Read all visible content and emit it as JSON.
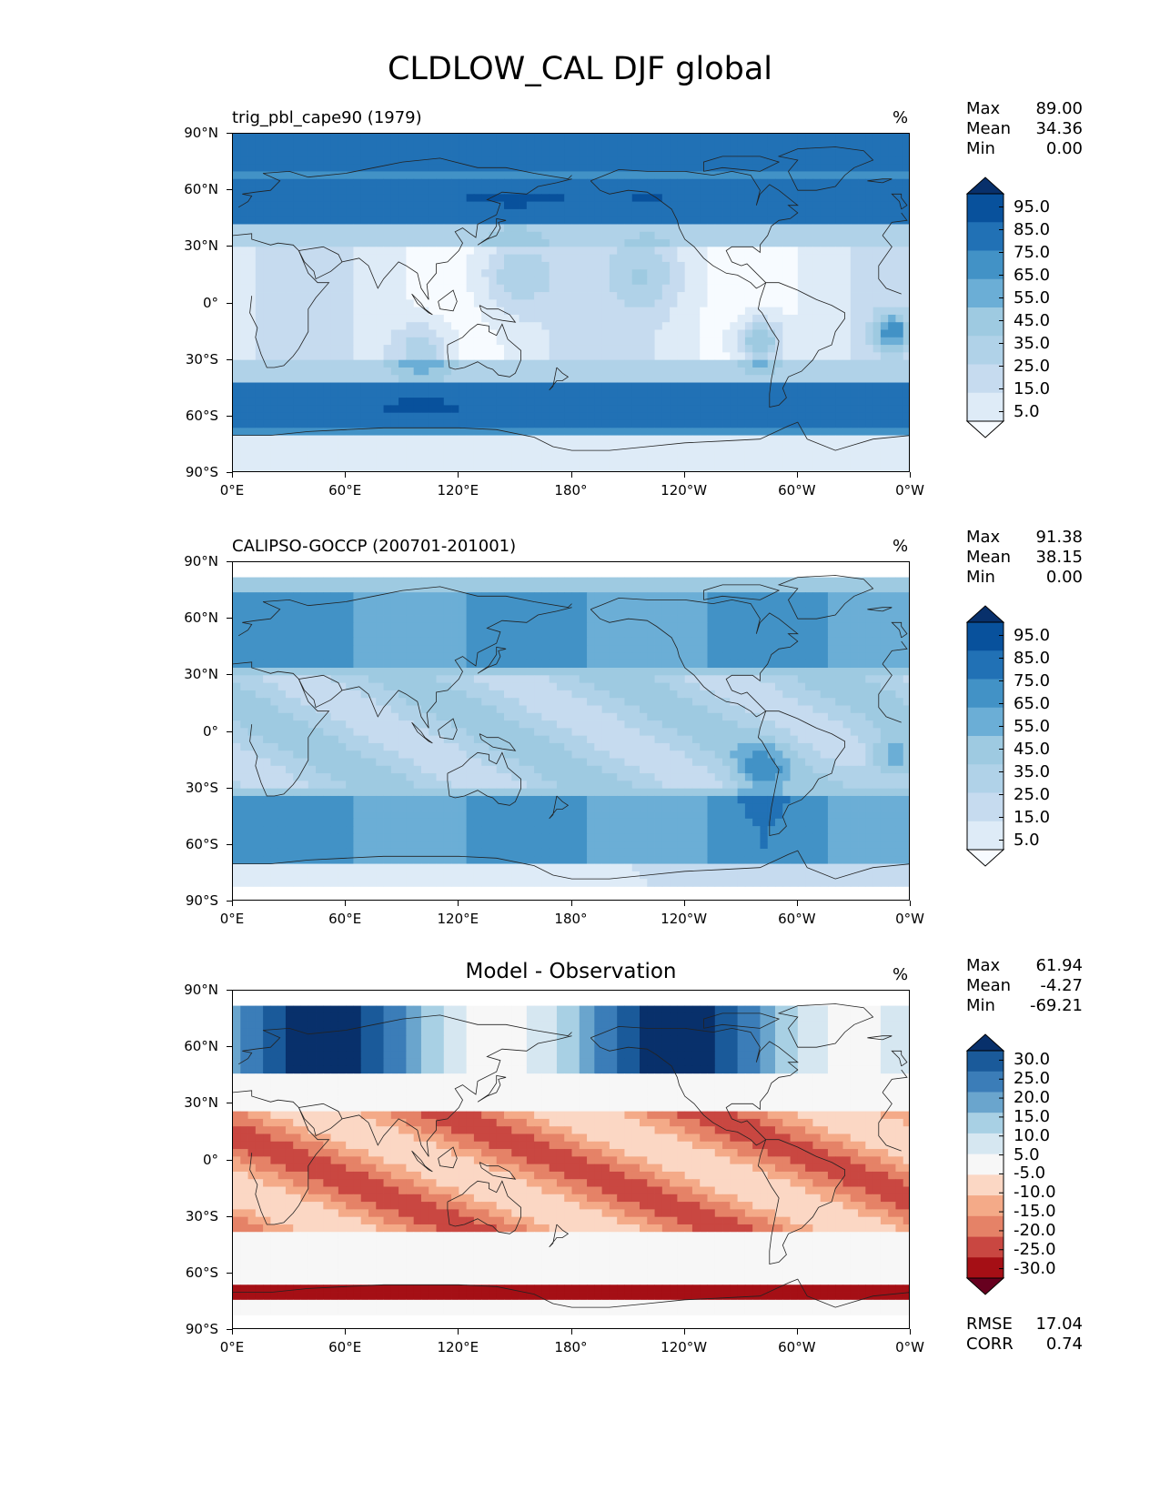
{
  "figure_title": "CLDLOW_CAL DJF global",
  "colors": {
    "blues": [
      "#f7fbff",
      "#deebf7",
      "#c6dbef",
      "#b0d2e8",
      "#9ecae1",
      "#6baed6",
      "#4292c6",
      "#2171b5",
      "#08519c",
      "#08306b"
    ],
    "diverging": [
      "#67001f",
      "#a50f15",
      "#c94741",
      "#e58267",
      "#f4aa88",
      "#fbd7c4",
      "#f7f7f7",
      "#d6e7f1",
      "#a8d0e4",
      "#6aa5cd",
      "#3b7db8",
      "#1a5a9a",
      "#08306b"
    ]
  },
  "chart_data": [
    {
      "type": "heatmap",
      "id": "model",
      "title": "trig_pbl_cape90 (1979)",
      "units": "%",
      "xlabel": "",
      "ylabel": "",
      "xlim": [
        0,
        360
      ],
      "ylim": [
        -90,
        90
      ],
      "x_ticks": [
        "0°E",
        "60°E",
        "120°E",
        "180°",
        "120°W",
        "60°W",
        "0°W"
      ],
      "y_ticks": [
        "90°N",
        "60°N",
        "30°N",
        "0°",
        "30°S",
        "60°S",
        "90°S"
      ],
      "stats": [
        [
          "Max",
          "89.00"
        ],
        [
          "Mean",
          "34.36"
        ],
        [
          "Min",
          "0.00"
        ]
      ],
      "colorbar_ticks": [
        "95.0",
        "85.0",
        "75.0",
        "65.0",
        "55.0",
        "45.0",
        "35.0",
        "25.0",
        "15.0",
        "5.0"
      ],
      "colormap": "blues"
    },
    {
      "type": "heatmap",
      "id": "obs",
      "title": "CALIPSO-GOCCP (200701-201001)",
      "units": "%",
      "xlabel": "",
      "ylabel": "",
      "xlim": [
        0,
        360
      ],
      "ylim": [
        -90,
        90
      ],
      "x_ticks": [
        "0°E",
        "60°E",
        "120°E",
        "180°",
        "120°W",
        "60°W",
        "0°W"
      ],
      "y_ticks": [
        "90°N",
        "60°N",
        "30°N",
        "0°",
        "30°S",
        "60°S",
        "90°S"
      ],
      "stats": [
        [
          "Max",
          "91.38"
        ],
        [
          "Mean",
          "38.15"
        ],
        [
          "Min",
          "0.00"
        ]
      ],
      "colorbar_ticks": [
        "95.0",
        "85.0",
        "75.0",
        "65.0",
        "55.0",
        "45.0",
        "35.0",
        "25.0",
        "15.0",
        "5.0"
      ],
      "colormap": "blues"
    },
    {
      "type": "heatmap",
      "id": "diff",
      "title": "Model - Observation",
      "units": "%",
      "xlabel": "",
      "ylabel": "",
      "xlim": [
        0,
        360
      ],
      "ylim": [
        -90,
        90
      ],
      "x_ticks": [
        "0°E",
        "60°E",
        "120°E",
        "180°",
        "120°W",
        "60°W",
        "0°W"
      ],
      "y_ticks": [
        "90°N",
        "60°N",
        "30°N",
        "0°",
        "30°S",
        "60°S",
        "90°S"
      ],
      "stats": [
        [
          "Max",
          "61.94"
        ],
        [
          "Mean",
          "-4.27"
        ],
        [
          "Min",
          "-69.21"
        ]
      ],
      "colorbar_ticks": [
        "30.0",
        "25.0",
        "20.0",
        "15.0",
        "10.0",
        "5.0",
        "-5.0",
        "-10.0",
        "-15.0",
        "-20.0",
        "-25.0",
        "-30.0"
      ],
      "colormap": "diverging",
      "footer_stats": [
        [
          "RMSE",
          "17.04"
        ],
        [
          "CORR",
          "0.74"
        ]
      ]
    }
  ]
}
